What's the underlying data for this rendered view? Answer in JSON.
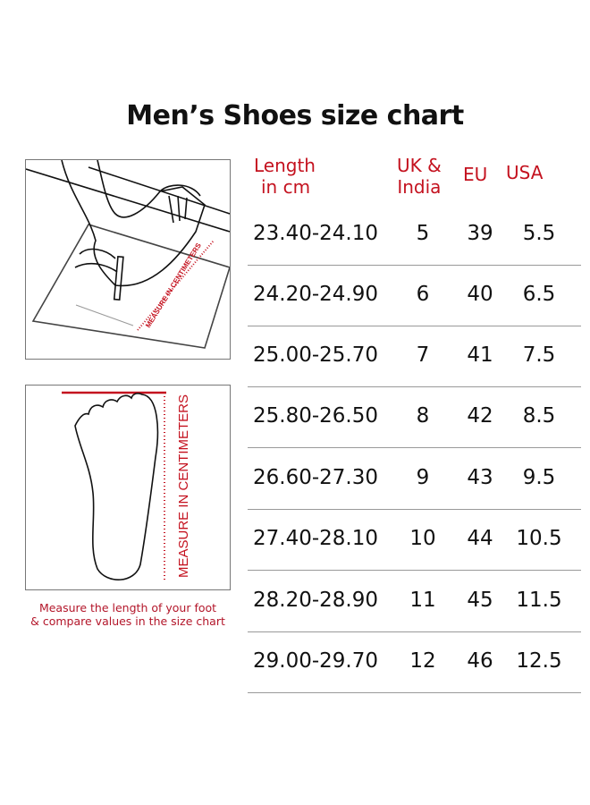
{
  "title": "Men’s Shoes size chart",
  "illustrations": {
    "ruler_label_top": "MEASURE IN CENTIMETERS",
    "ruler_label_bottom": "MEASURE IN CENTIMETERS",
    "caption_line1": "Measure the length of your foot",
    "caption_line2": "& compare values in the size chart",
    "accent_color": "#c4121f"
  },
  "table": {
    "headers": {
      "length_line1": "Length",
      "length_line2": "in cm",
      "uk_line1": "UK &",
      "uk_line2": "India",
      "eu": "EU",
      "usa": "USA"
    },
    "rows": [
      {
        "length": "23.40-24.10",
        "uk": "5",
        "eu": "39",
        "usa": "5.5"
      },
      {
        "length": "24.20-24.90",
        "uk": "6",
        "eu": "40",
        "usa": "6.5"
      },
      {
        "length": "25.00-25.70",
        "uk": "7",
        "eu": "41",
        "usa": "7.5"
      },
      {
        "length": "25.80-26.50",
        "uk": "8",
        "eu": "42",
        "usa": "8.5"
      },
      {
        "length": "26.60-27.30",
        "uk": "9",
        "eu": "43",
        "usa": "9.5"
      },
      {
        "length": "27.40-28.10",
        "uk": "10",
        "eu": "44",
        "usa": "10.5"
      },
      {
        "length": "28.20-28.90",
        "uk": "11",
        "eu": "45",
        "usa": "11.5"
      },
      {
        "length": "29.00-29.70",
        "uk": "12",
        "eu": "46",
        "usa": "12.5"
      }
    ]
  }
}
